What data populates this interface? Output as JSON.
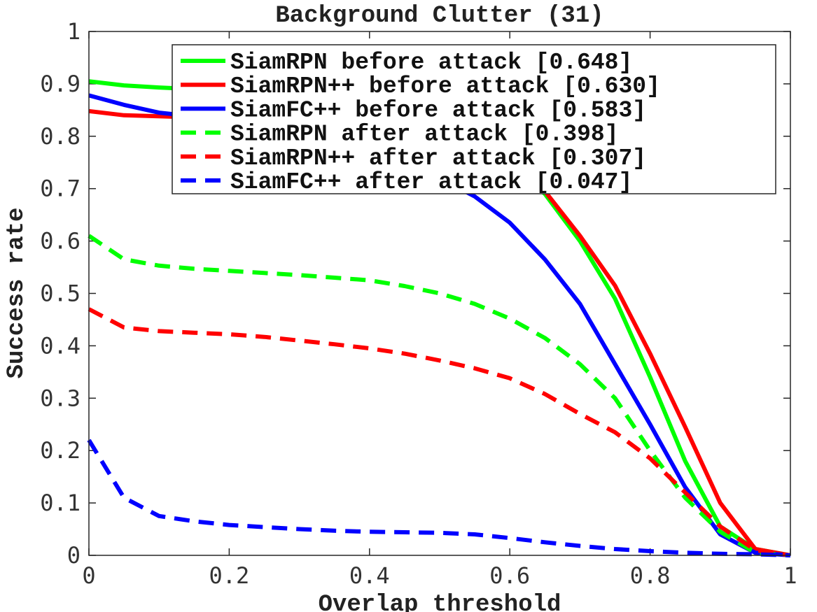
{
  "chart_data": {
    "type": "line",
    "title": "Background Clutter (31)",
    "xlabel": "Overlap threshold",
    "ylabel": "Success rate",
    "xlim": [
      0,
      1
    ],
    "ylim": [
      0,
      1
    ],
    "x_ticks": [
      "0",
      "0.2",
      "0.4",
      "0.6",
      "0.8",
      "1"
    ],
    "y_ticks": [
      "0",
      "0.1",
      "0.2",
      "0.3",
      "0.4",
      "0.5",
      "0.6",
      "0.7",
      "0.8",
      "0.9",
      "1"
    ],
    "legend_position": "top-right",
    "x": [
      0,
      0.05,
      0.1,
      0.15,
      0.2,
      0.25,
      0.3,
      0.35,
      0.4,
      0.45,
      0.5,
      0.55,
      0.6,
      0.65,
      0.7,
      0.75,
      0.8,
      0.85,
      0.9,
      0.95,
      1.0
    ],
    "series": [
      {
        "name": "SiamRPN before attack [0.648]",
        "color": "#00ff00",
        "style": "solid",
        "values": [
          0.905,
          0.897,
          0.893,
          0.89,
          0.888,
          0.885,
          0.88,
          0.872,
          0.86,
          0.845,
          0.82,
          0.79,
          0.745,
          0.69,
          0.6,
          0.49,
          0.34,
          0.18,
          0.055,
          0.012,
          0.0
        ]
      },
      {
        "name": "SiamRPN++ before attack [0.630]",
        "color": "#ff0000",
        "style": "solid",
        "values": [
          0.848,
          0.84,
          0.838,
          0.836,
          0.834,
          0.83,
          0.825,
          0.818,
          0.808,
          0.795,
          0.78,
          0.76,
          0.735,
          0.695,
          0.61,
          0.515,
          0.385,
          0.245,
          0.1,
          0.012,
          0.0
        ]
      },
      {
        "name": "SiamFC++ before attack [0.583]",
        "color": "#0000ff",
        "style": "solid",
        "values": [
          0.878,
          0.86,
          0.845,
          0.838,
          0.83,
          0.82,
          0.81,
          0.795,
          0.775,
          0.75,
          0.72,
          0.685,
          0.635,
          0.565,
          0.48,
          0.365,
          0.25,
          0.13,
          0.04,
          0.005,
          0.0
        ]
      },
      {
        "name": "SiamRPN after attack [0.398]",
        "color": "#00ff00",
        "style": "dashed",
        "values": [
          0.61,
          0.565,
          0.553,
          0.547,
          0.543,
          0.539,
          0.535,
          0.53,
          0.525,
          0.514,
          0.5,
          0.48,
          0.452,
          0.415,
          0.365,
          0.3,
          0.2,
          0.11,
          0.045,
          0.005,
          0.0
        ]
      },
      {
        "name": "SiamRPN++ after attack [0.307]",
        "color": "#ff0000",
        "style": "dashed",
        "values": [
          0.47,
          0.435,
          0.428,
          0.425,
          0.422,
          0.417,
          0.41,
          0.403,
          0.395,
          0.385,
          0.372,
          0.357,
          0.338,
          0.308,
          0.27,
          0.235,
          0.185,
          0.12,
          0.055,
          0.01,
          0.0
        ]
      },
      {
        "name": "SiamFC++ after attack [0.047]",
        "color": "#0000ff",
        "style": "dashed",
        "values": [
          0.22,
          0.11,
          0.075,
          0.065,
          0.058,
          0.054,
          0.05,
          0.047,
          0.045,
          0.044,
          0.043,
          0.04,
          0.033,
          0.025,
          0.018,
          0.012,
          0.008,
          0.005,
          0.003,
          0.002,
          0.0
        ]
      }
    ]
  }
}
